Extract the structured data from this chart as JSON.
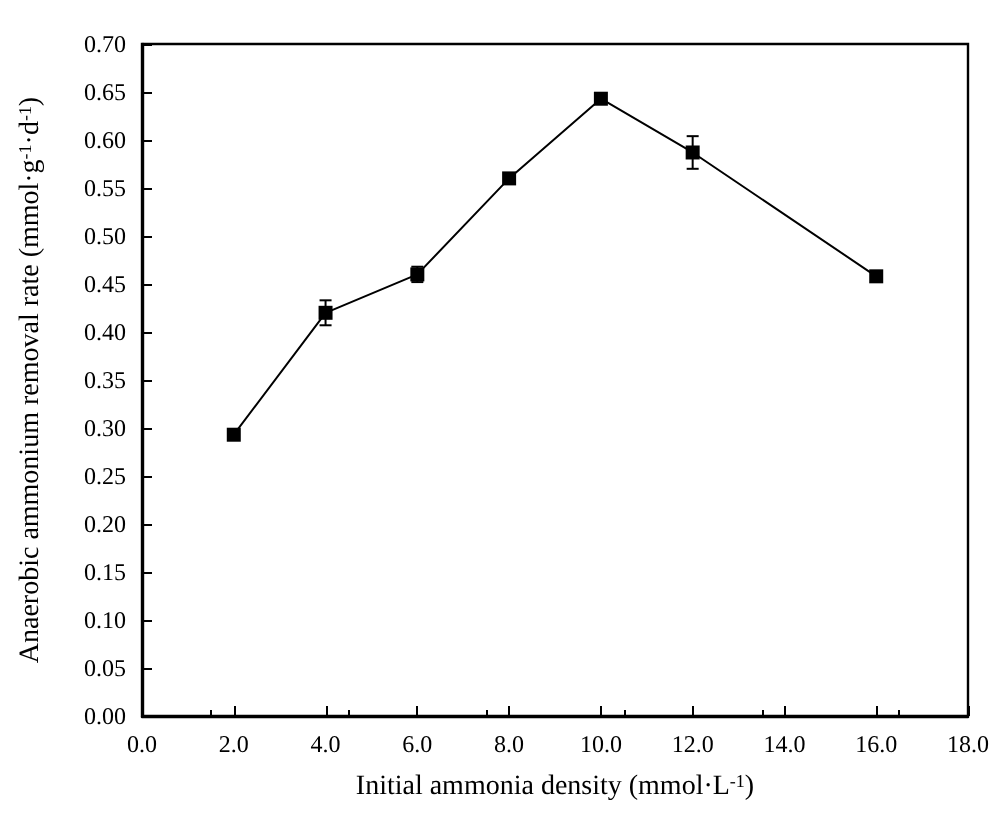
{
  "chart_data": {
    "type": "line",
    "xlabel": "Initial ammonia density (mmol·L$^{-1}$)",
    "ylabel": "Anaerobic ammonium removal rate (mmol·g$^{-1}$·d$^{-1}$)",
    "x": [
      2,
      4,
      6,
      8,
      10,
      12,
      16
    ],
    "series": [
      {
        "color": "#000000",
        "values": [
          0.293,
          0.42,
          0.46,
          0.56,
          0.643,
          0.587,
          0.458
        ],
        "errors": [
          null,
          0.013,
          0.008,
          null,
          null,
          0.017,
          null
        ]
      }
    ],
    "xlim": [
      0,
      18
    ],
    "xticks": [
      {
        "value": 0,
        "label": "0.0"
      },
      {
        "value": 2,
        "label": "2.0"
      },
      {
        "value": 4,
        "label": "4.0"
      },
      {
        "value": 6,
        "label": "6.0"
      },
      {
        "value": 8,
        "label": "8.0"
      },
      {
        "value": 10,
        "label": "10.0"
      },
      {
        "value": 12,
        "label": "12.0"
      },
      {
        "value": 14,
        "label": "14.0"
      },
      {
        "value": 16,
        "label": "16.0"
      },
      {
        "value": 18,
        "label": "18.0"
      }
    ],
    "ylim": [
      0,
      0.7
    ],
    "yticks": [
      {
        "value": 0,
        "label": "0.00"
      },
      0.05,
      {
        "value": 0.1,
        "label": "0.10"
      },
      0.15,
      {
        "value": 0.2,
        "label": "0.20"
      },
      0.25,
      {
        "value": 0.3,
        "label": "0.30"
      },
      0.35,
      {
        "value": 0.4,
        "label": "0.40"
      },
      0.45,
      {
        "value": 0.5,
        "label": "0.50"
      },
      0.55,
      {
        "value": 0.6,
        "label": "0.60"
      },
      0.65,
      {
        "value": 0.7,
        "label": "0.70"
      }
    ],
    "grid": false,
    "marker": "square",
    "line_style": "solid"
  }
}
